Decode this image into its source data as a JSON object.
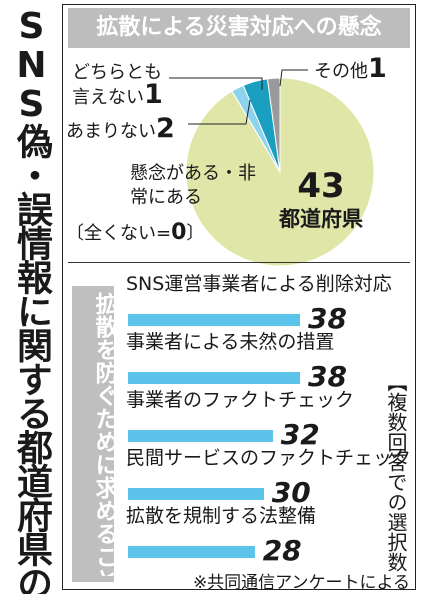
{
  "side_title": "SNS偽・誤情報に関する都道府県の回答状況",
  "pie_section": {
    "title": "拡散による災害対応への懸念"
  },
  "bar_section": {
    "question": "拡散を防ぐために求めること",
    "unit_note": "【複数回答での選択数】"
  },
  "source": "※共同通信アンケートによる",
  "colors": {
    "pie_main": "#dfe6a8",
    "pie_dochira": "#8dd3ee",
    "pie_amari": "#1a9fc0",
    "pie_sonota": "#9a9a9a",
    "bar": "#5cc4ea",
    "header_bg": "#bdbdbd"
  },
  "chart_data": [
    {
      "type": "pie",
      "title": "拡散による災害対応への懸念",
      "slices": [
        {
          "label": "懸念がある・非常にある",
          "value": 43,
          "value_label": "43",
          "unit_label": "都道府県"
        },
        {
          "label": "どちらとも言えない",
          "value": 1,
          "label_line1": "どちらとも",
          "label_line2": "言えない"
        },
        {
          "label": "あまりない",
          "value": 2
        },
        {
          "label": "その他",
          "value": 1
        },
        {
          "label": "全くない",
          "value": 0
        }
      ],
      "zero_note": {
        "open": "〔全くない=",
        "value": "0",
        "close": "〕"
      }
    },
    {
      "type": "bar",
      "orientation": "horizontal",
      "title": "拡散を防ぐために求めること",
      "categories": [
        "SNS運営事業者による削除対応",
        "事業者による未然の措置",
        "事業者のファクトチェック",
        "民間サービスのファクトチェック",
        "拡散を規制する法整備"
      ],
      "values": [
        38,
        38,
        32,
        30,
        28
      ],
      "value_labels": [
        "38",
        "38",
        "32",
        "30",
        "28"
      ],
      "xlim": [
        0,
        38
      ]
    }
  ]
}
